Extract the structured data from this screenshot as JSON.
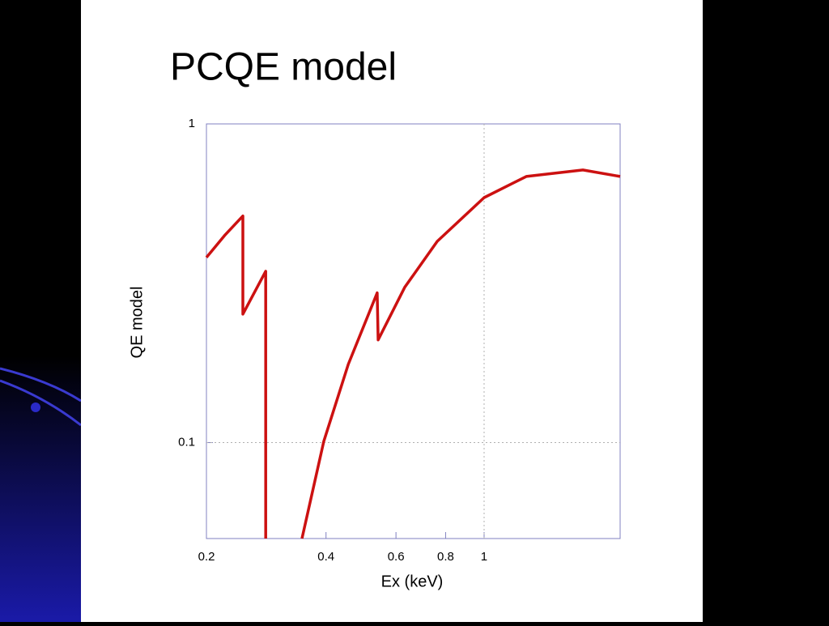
{
  "chart_data": {
    "type": "line",
    "title": "PCQE model",
    "xlabel": "Ex (keV)",
    "ylabel": "QE model",
    "x": [
      0.2,
      0.223,
      0.247,
      0.247,
      0.282,
      0.282,
      null,
      0.348,
      0.395,
      0.455,
      0.538,
      0.541,
      0.631,
      0.762,
      1,
      1.277,
      1.773,
      2.2
    ],
    "values": [
      0.381,
      0.449,
      0.514,
      0.253,
      0.345,
      0.05,
      null,
      0.05,
      0.101,
      0.176,
      0.295,
      0.21,
      0.307,
      0.428,
      0.587,
      0.684,
      0.717,
      0.684
    ],
    "color": "#cc1111",
    "xlim": [
      0.2,
      2.2
    ],
    "xticks": [
      0.2,
      0.4,
      0.6,
      0.8,
      1
    ],
    "xscale": "log",
    "ylim": [
      0.05,
      1
    ],
    "yticks": [
      0.1,
      1
    ],
    "yscale": "log",
    "grid": true
  }
}
